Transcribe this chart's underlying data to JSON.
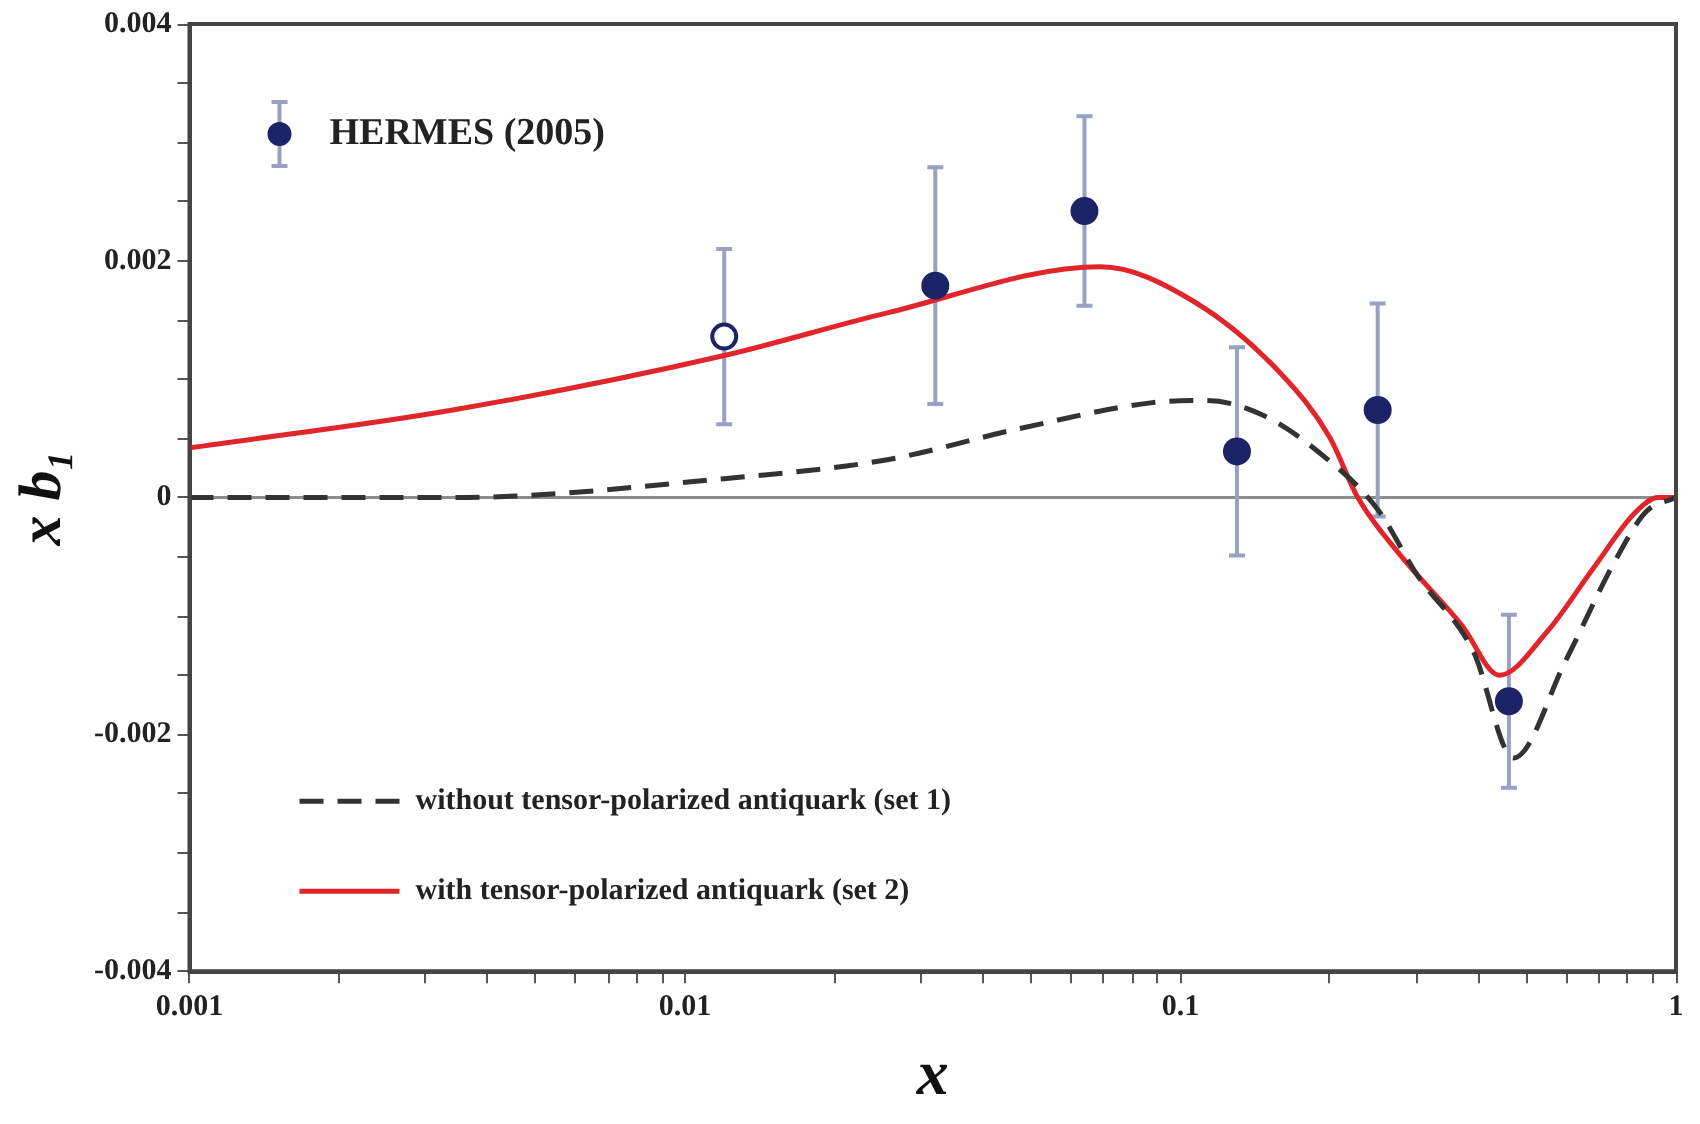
{
  "chart_data": {
    "type": "line",
    "xlabel": "x",
    "ylabel": "x b₁",
    "log": "x",
    "xlim": [
      0.001,
      1
    ],
    "xticks": [
      0.001,
      {
        "value": 0.002,
        "label": null
      },
      {
        "value": 0.003,
        "label": null
      },
      {
        "value": 0.004,
        "label": null
      },
      {
        "value": 0.005,
        "label": null
      },
      {
        "value": 0.006,
        "label": null
      },
      {
        "value": 0.007,
        "label": null
      },
      {
        "value": 0.008,
        "label": null
      },
      {
        "value": 0.009,
        "label": null
      },
      0.01,
      {
        "value": 0.02,
        "label": null
      },
      {
        "value": 0.03,
        "label": null
      },
      {
        "value": 0.04,
        "label": null
      },
      {
        "value": 0.05,
        "label": null
      },
      {
        "value": 0.06,
        "label": null
      },
      {
        "value": 0.07,
        "label": null
      },
      {
        "value": 0.08,
        "label": null
      },
      {
        "value": 0.09,
        "label": null
      },
      0.1,
      {
        "value": 0.2,
        "label": null
      },
      {
        "value": 0.3,
        "label": null
      },
      {
        "value": 0.4,
        "label": null
      },
      {
        "value": 0.5,
        "label": null
      },
      {
        "value": 0.6,
        "label": null
      },
      {
        "value": 0.7,
        "label": null
      },
      {
        "value": 0.8,
        "label": null
      },
      {
        "value": 0.9,
        "label": null
      },
      1
    ],
    "ylim": [
      -0.004,
      0.004
    ],
    "yticks": [
      -0.004,
      {
        "value": -0.0035,
        "label": null
      },
      {
        "value": -0.003,
        "label": null
      },
      {
        "value": -0.0025,
        "label": null
      },
      -0.002,
      {
        "value": -0.0015,
        "label": null
      },
      {
        "value": -0.001,
        "label": null
      },
      {
        "value": -0.0005,
        "label": null
      },
      0,
      {
        "value": 0.0005,
        "label": null
      },
      {
        "value": 0.001,
        "label": null
      },
      {
        "value": 0.0015,
        "label": null
      },
      0.002,
      {
        "value": 0.0025,
        "label": null
      },
      {
        "value": 0.003,
        "label": null
      },
      {
        "value": 0.0035,
        "label": null
      },
      0.004
    ],
    "grid": false,
    "legend": "left",
    "ref_lines": [
      {
        "axis": "y",
        "value": 0,
        "color": "#8c8c8c"
      }
    ],
    "series": [
      {
        "name": "HERMES (2005)",
        "type": "scatter",
        "marker": "circle",
        "color": "#1c2366",
        "colors": [
          "#ffffff",
          "#1c2366",
          "#1c2366",
          "#1c2366",
          "#1c2366",
          "#1c2366"
        ],
        "x": [
          0.012,
          0.032,
          0.064,
          0.13,
          0.25,
          0.46
        ],
        "values": [
          0.00136,
          0.00179,
          0.00242,
          0.00039,
          0.00074,
          -0.00172
        ],
        "errors": [
          0.00074,
          0.001,
          0.0008,
          0.00088,
          0.0009,
          0.00073
        ]
      },
      {
        "name": "without tensor-polarized antiquark (set 1)",
        "marker": "none",
        "line_style": "dashed",
        "color": "#333333",
        "x": [
          0.001,
          0.0034,
          0.012,
          0.0256,
          0.047,
          0.087,
          0.113,
          0.146,
          0.188,
          0.25,
          0.3,
          0.39,
          0.47,
          0.6,
          0.75,
          0.87,
          1
        ],
        "values": [
          0,
          0,
          0.00016,
          0.00032,
          0.00058,
          0.0008,
          0.00082,
          0.0007,
          0.0004,
          -0.0001,
          -0.00065,
          -0.0013,
          -0.0022,
          -0.00137,
          -0.00055,
          -0.00012,
          0
        ]
      },
      {
        "name": "with tensor-polarized antiquark (set 2)",
        "marker": "none",
        "line_style": "solid",
        "color": "#e0262a",
        "x": [
          0.001,
          0.0034,
          0.012,
          0.0256,
          0.069,
          0.107,
          0.16,
          0.2,
          0.228,
          0.277,
          0.37,
          0.44,
          0.55,
          0.68,
          0.83,
          0.92,
          1
        ],
        "values": [
          0.00042,
          0.00074,
          0.0012,
          0.00156,
          0.00195,
          0.00165,
          0.00104,
          0.00051,
          0,
          -0.00048,
          -0.00108,
          -0.0015,
          -0.00113,
          -0.0006,
          -0.00012,
          0,
          0
        ]
      }
    ]
  }
}
